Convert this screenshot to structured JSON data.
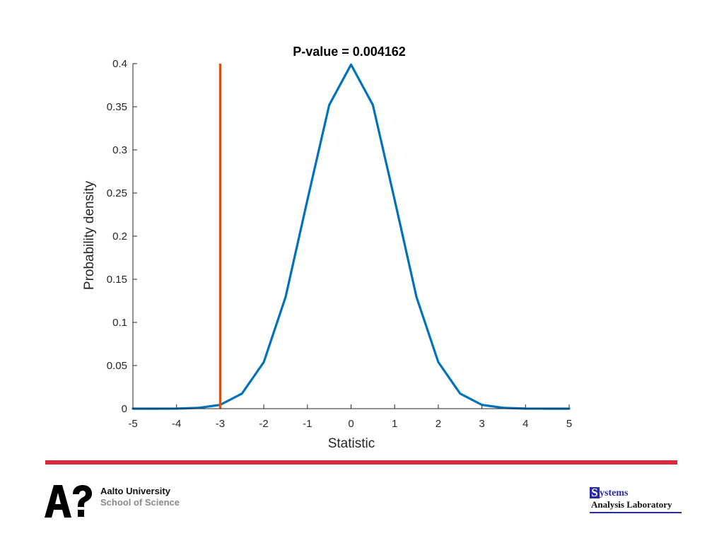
{
  "chart_data": {
    "type": "line",
    "title": "P-value = 0.004162",
    "xlabel": "Statistic",
    "ylabel": "Probability density",
    "xlim": [
      -5,
      5
    ],
    "ylim": [
      0,
      0.4
    ],
    "xticks": [
      -5,
      -4,
      -3,
      -2,
      -1,
      0,
      1,
      2,
      3,
      4,
      5
    ],
    "yticks": [
      0,
      0.05,
      0.1,
      0.15,
      0.2,
      0.25,
      0.3,
      0.35,
      0.4
    ],
    "xtick_labels": [
      "-5",
      "-4",
      "-3",
      "-2",
      "-1",
      "0",
      "1",
      "2",
      "3",
      "4",
      "5"
    ],
    "ytick_labels": [
      "0",
      "0.05",
      "0.1",
      "0.15",
      "0.2",
      "0.25",
      "0.3",
      "0.35",
      "0.4"
    ],
    "grid": false,
    "series": [
      {
        "color": "#0072BD",
        "x": [
          -5,
          -4.5,
          -4,
          -3.5,
          -3,
          -2.5,
          -2,
          -1.5,
          -1,
          -0.5,
          0,
          0.5,
          1,
          1.5,
          2,
          2.5,
          3,
          3.5,
          4,
          4.5,
          5
        ],
        "values": [
          0.0,
          0.0,
          0.0001,
          0.0009,
          0.0044,
          0.0175,
          0.054,
          0.1295,
          0.242,
          0.3521,
          0.3989,
          0.3521,
          0.242,
          0.1295,
          0.054,
          0.0175,
          0.0044,
          0.0009,
          0.0001,
          0.0,
          0.0
        ]
      }
    ],
    "vertical_line": {
      "x": -3,
      "y_from": 0,
      "y_to": 0.4,
      "color": "#D95319"
    }
  },
  "colors": {
    "rule": "#E0283C",
    "aalto_mark": "#000000"
  },
  "footer": {
    "aalto_line1": "Aalto University",
    "aalto_line2": "School of Science",
    "sal_initial": "S",
    "sal_rest": "ystems",
    "sal_line2": "Analysis Laboratory"
  }
}
